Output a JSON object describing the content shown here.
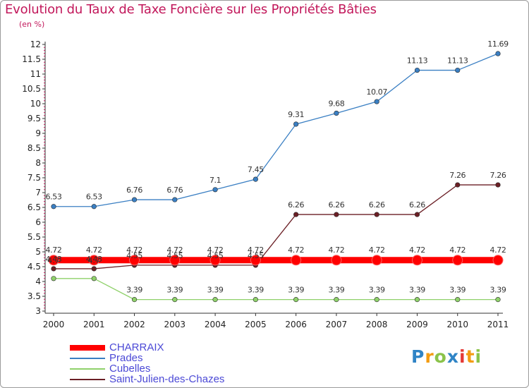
{
  "title": "Evolution du Taux de Taxe Foncière sur les Propriétés Bâties",
  "unit_label": "(en %)",
  "logo": {
    "text": "Proxiti",
    "colors": [
      "#2f84c6",
      "#f39c12",
      "#8bc34a",
      "#2f84c6",
      "#e53935",
      "#f39c12",
      "#8bc34a"
    ]
  },
  "chart_data": {
    "type": "line",
    "title": "Evolution du Taux de Taxe Foncière sur les Propriétés Bâties",
    "ylabel": "(en %)",
    "xlabel": "",
    "x": [
      "2000",
      "2001",
      "2002",
      "2003",
      "2004",
      "2005",
      "2006",
      "2007",
      "2008",
      "2009",
      "2010",
      "2011"
    ],
    "ylim": [
      3,
      12
    ],
    "ytick_labels": [
      "3",
      "3.5",
      "4",
      "4.5",
      "5",
      "5.5",
      "6",
      "6.5",
      "7",
      "7.5",
      "8",
      "8.5",
      "9",
      "9.5",
      "10",
      "10.5",
      "11",
      "11.5",
      "12"
    ],
    "grid": false,
    "legend_position": "bottom-left",
    "series": [
      {
        "name": "CHARRAIX",
        "color": "#ff0000",
        "thick": true,
        "values": [
          4.72,
          4.72,
          4.72,
          4.72,
          4.72,
          4.72,
          4.72,
          4.72,
          4.72,
          4.72,
          4.72,
          4.72
        ],
        "labels": [
          "4.72",
          "4.72",
          "4.72",
          "4.72",
          "4.72",
          "4.72",
          "4.72",
          "4.72",
          "4.72",
          "4.72",
          "4.72",
          "4.72"
        ]
      },
      {
        "name": "Prades",
        "color": "#3a7fc3",
        "values": [
          6.53,
          6.53,
          6.76,
          6.76,
          7.1,
          7.45,
          9.31,
          9.68,
          10.07,
          11.13,
          11.13,
          11.69
        ],
        "labels": [
          "6.53",
          "6.53",
          "6.76",
          "6.76",
          "7.1",
          "7.45",
          "9.31",
          "9.68",
          "10.07",
          "11.13",
          "11.13",
          "11.69"
        ]
      },
      {
        "name": "Cubelles",
        "color": "#8fd16a",
        "values": [
          4.1,
          4.1,
          3.39,
          3.39,
          3.39,
          3.39,
          3.39,
          3.39,
          3.39,
          3.39,
          3.39,
          3.39
        ],
        "labels": [
          "",
          "",
          "3.39",
          "3.39",
          "3.39",
          "3.39",
          "3.39",
          "3.39",
          "3.39",
          "3.39",
          "3.39",
          "3.39"
        ]
      },
      {
        "name": "Saint-Julien-des-Chazes",
        "color": "#6b1f25",
        "values": [
          4.43,
          4.43,
          4.55,
          4.55,
          4.55,
          4.55,
          6.26,
          6.26,
          6.26,
          6.26,
          7.26,
          7.26
        ],
        "labels": [
          "4.43",
          "4.43",
          "4.55",
          "4.55",
          "4.55",
          "4.55",
          "6.26",
          "6.26",
          "6.26",
          "6.26",
          "7.26",
          "7.26"
        ]
      }
    ],
    "extra_point_labels": [
      {
        "x_index": 0,
        "text": "4.7"
      },
      {
        "x_index": 1,
        "text": "4.7"
      }
    ]
  }
}
